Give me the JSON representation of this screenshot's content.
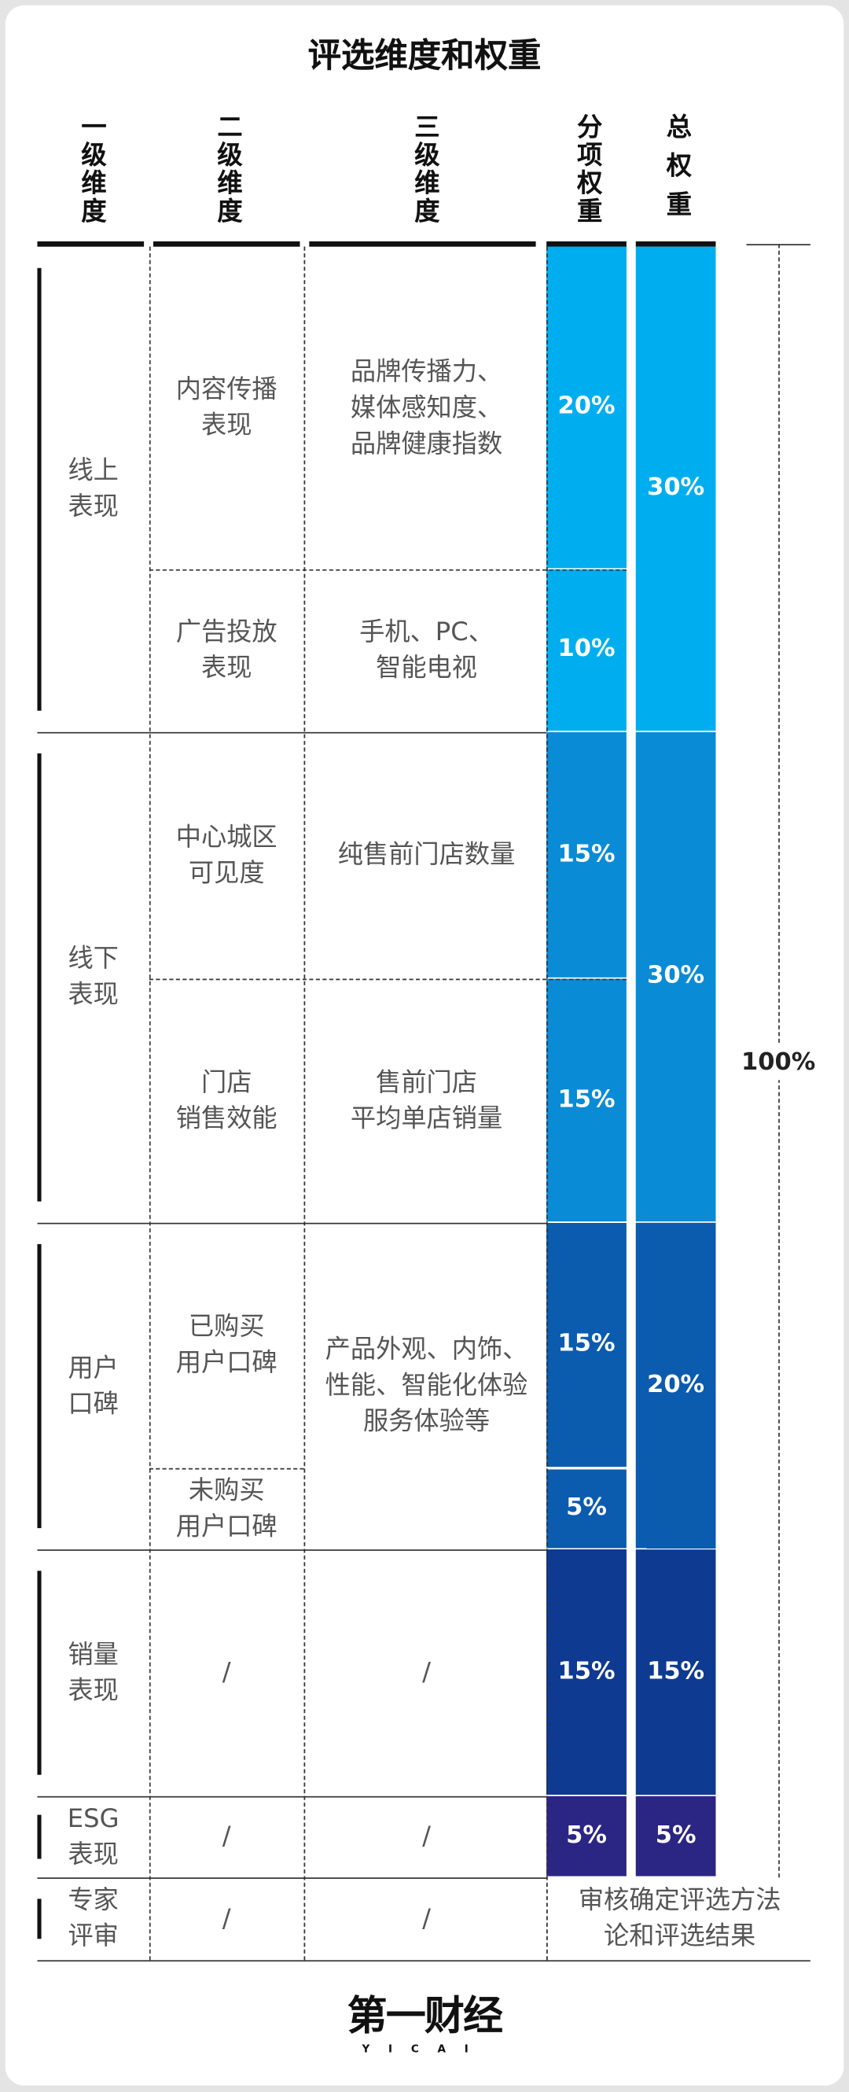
{
  "title": "评选维度和权重",
  "headers": [
    "一级维度",
    "二级维度",
    "三级维度",
    "分项权重",
    "总权重"
  ],
  "rows": [
    {
      "level1": [
        "线上",
        "表现"
      ],
      "total": "30%",
      "color": "#00aeef",
      "subs": [
        {
          "level2": [
            "内容传播",
            "表现"
          ],
          "level3": [
            "品牌传播力、",
            "媒体感知度、",
            "品牌健康指数"
          ],
          "weight": "20%"
        },
        {
          "level2": [
            "广告投放",
            "表现"
          ],
          "level3": [
            "手机、PC、",
            "智能电视"
          ],
          "weight": "10%"
        }
      ]
    },
    {
      "level1": [
        "线下",
        "表现"
      ],
      "total": "30%",
      "color": "#0a8bd6",
      "subs": [
        {
          "level2": [
            "中心城区",
            "可见度"
          ],
          "level3": [
            "纯售前门店数量"
          ],
          "weight": "15%"
        },
        {
          "level2": [
            "门店",
            "销售效能"
          ],
          "level3": [
            "售前门店",
            "平均单店销量"
          ],
          "weight": "15%"
        }
      ]
    },
    {
      "level1": [
        "用户",
        "口碑"
      ],
      "total": "20%",
      "color": "#0b5bae",
      "level3": [
        "产品外观、内饰、",
        "性能、智能化体验",
        "服务体验等"
      ],
      "subs": [
        {
          "level2": [
            "已购买",
            "用户口碑"
          ],
          "weight": "15%"
        },
        {
          "level2": [
            "未购买",
            "用户口碑"
          ],
          "weight": "5%"
        }
      ]
    },
    {
      "level1": [
        "销量",
        "表现"
      ],
      "total": "15%",
      "color": "#0e3a92",
      "subs": [
        {
          "level2": [
            "/"
          ],
          "level3": [
            "/"
          ],
          "weight": "15%"
        }
      ]
    },
    {
      "level1": [
        "ESG",
        "表现"
      ],
      "total": "5%",
      "color": "#2b2583",
      "subs": [
        {
          "level2": [
            "/"
          ],
          "level3": [
            "/"
          ],
          "weight": "5%"
        }
      ]
    }
  ],
  "overall": "100%",
  "expert": {
    "level1": [
      "专家",
      "评审"
    ],
    "level2": [
      "/"
    ],
    "level3": [
      "/"
    ],
    "note": [
      "审核确定评选方法",
      "论和评选结果"
    ]
  },
  "logo": {
    "main": "第一财经",
    "sub": "YICAI"
  }
}
